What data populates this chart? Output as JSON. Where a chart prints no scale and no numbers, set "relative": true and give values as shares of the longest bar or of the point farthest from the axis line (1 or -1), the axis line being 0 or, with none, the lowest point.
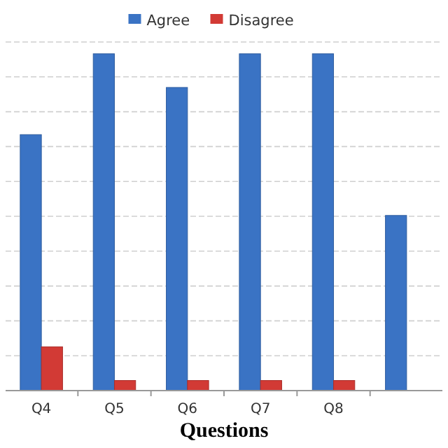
{
  "chart_data": {
    "type": "bar",
    "relative": true,
    "xlabel": "Questions",
    "categories": [
      "Q4",
      "Q5",
      "Q6",
      "Q7",
      "Q8",
      null
    ],
    "series": [
      {
        "name": "Agree",
        "color": "#3a73c4",
        "values": [
          0.76,
          1,
          0.9,
          1,
          1,
          0.52
        ]
      },
      {
        "name": "Disagree",
        "color": "#d23a35",
        "values": [
          0.13,
          0.03,
          0.03,
          0.03,
          0.03,
          null
        ]
      }
    ],
    "grid": "y",
    "legend": "top"
  }
}
